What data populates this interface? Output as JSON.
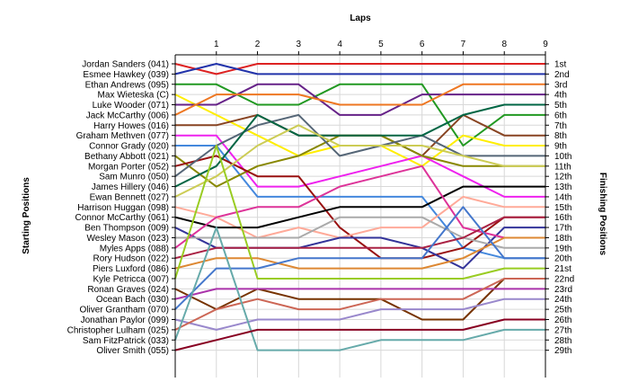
{
  "chart_data": {
    "type": "line",
    "title": "",
    "xlabel": "Laps",
    "ylabel_left": "Starting Positions",
    "ylabel_right": "Finishing Positions",
    "x": [
      0,
      1,
      2,
      3,
      4,
      5,
      6,
      7,
      8
    ],
    "x_ticks": [
      "1",
      "2",
      "3",
      "4",
      "5",
      "6",
      "7",
      "8",
      "9"
    ],
    "xlim": [
      0,
      9
    ],
    "ylim": [
      1,
      29
    ],
    "y_inverted": true,
    "grid": true,
    "legend": "none",
    "finishing_positions": [
      "1st",
      "2nd",
      "3rd",
      "4th",
      "5th",
      "6th",
      "7th",
      "8th",
      "9th",
      "10th",
      "11th",
      "12th",
      "13th",
      "14th",
      "15th",
      "16th",
      "17th",
      "18th",
      "19th",
      "20th",
      "21st",
      "22nd",
      "23rd",
      "24th",
      "25th",
      "26th",
      "27th",
      "28th",
      "29th"
    ],
    "series": [
      {
        "name": "Jordan Sanders (041)",
        "color": "#dd2222",
        "values": [
          1,
          2,
          1,
          1,
          1,
          1,
          1,
          1,
          1
        ]
      },
      {
        "name": "Esmee Hawkey (039)",
        "color": "#2233aa",
        "values": [
          2,
          1,
          2,
          2,
          2,
          2,
          2,
          2,
          2
        ]
      },
      {
        "name": "Ethan Andrews (095)",
        "color": "#229922",
        "values": [
          3,
          3,
          5,
          5,
          3,
          3,
          3,
          9,
          6
        ]
      },
      {
        "name": "Max Wieteska (C)",
        "color": "#ffee00",
        "values": [
          4,
          6,
          8,
          10,
          9,
          9,
          11,
          8,
          9
        ]
      },
      {
        "name": "Luke Wooder (071)",
        "color": "#662288",
        "values": [
          5,
          5,
          3,
          3,
          6,
          6,
          4,
          4,
          4
        ]
      },
      {
        "name": "Jack McCarthy (006)",
        "color": "#ee7722",
        "values": [
          6,
          4,
          4,
          4,
          5,
          5,
          5,
          3,
          3
        ]
      },
      {
        "name": "Harry Howes (016)",
        "color": "#884422",
        "values": [
          7,
          7,
          6,
          8,
          8,
          8,
          10,
          6,
          8
        ]
      },
      {
        "name": "Graham Methven (077)",
        "color": "#ee22ee",
        "values": [
          8,
          8,
          13,
          13,
          12,
          11,
          10,
          12,
          14
        ]
      },
      {
        "name": "Connor Grady (020)",
        "color": "#4488dd",
        "values": [
          9,
          9,
          14,
          14,
          14,
          14,
          14,
          19,
          20
        ]
      },
      {
        "name": "Bethany Abbott (021)",
        "color": "#888800",
        "values": [
          10,
          13,
          11,
          10,
          8,
          8,
          10,
          11,
          11
        ]
      },
      {
        "name": "Morgan Porter (052)",
        "color": "#991111",
        "values": [
          11,
          10,
          12,
          12,
          17,
          20,
          20,
          19,
          16
        ]
      },
      {
        "name": "Sam Munro (050)",
        "color": "#556677",
        "values": [
          12,
          9,
          7,
          6,
          10,
          9,
          8,
          10,
          10
        ]
      },
      {
        "name": "James Hillery (046)",
        "color": "#006644",
        "values": [
          13,
          11,
          6,
          8,
          8,
          8,
          8,
          6,
          5
        ]
      },
      {
        "name": "Ewan Bennett (027)",
        "color": "#cccc55",
        "values": [
          14,
          12,
          9,
          7,
          9,
          9,
          9,
          10,
          11
        ]
      },
      {
        "name": "Harrison Huggan (098)",
        "color": "#ffaa99",
        "values": [
          15,
          16,
          18,
          17,
          18,
          17,
          17,
          14,
          15
        ]
      },
      {
        "name": "Connor McCarthy (061)",
        "color": "#000000",
        "values": [
          16,
          17,
          17,
          16,
          15,
          15,
          15,
          13,
          13
        ]
      },
      {
        "name": "Ben Thompson (009)",
        "color": "#333399",
        "values": [
          17,
          19,
          19,
          19,
          18,
          18,
          19,
          21,
          17
        ]
      },
      {
        "name": "Wesley Mason (023)",
        "color": "#aaaaaa",
        "values": [
          18,
          18,
          18,
          18,
          16,
          16,
          16,
          18,
          19
        ]
      },
      {
        "name": "Myles Apps (088)",
        "color": "#dd3399",
        "values": [
          19,
          16,
          15,
          15,
          13,
          12,
          11,
          17,
          18
        ]
      },
      {
        "name": "Rory Hudson (022)",
        "color": "#aa2244",
        "values": [
          20,
          19,
          19,
          19,
          19,
          19,
          19,
          18,
          16
        ]
      },
      {
        "name": "Piers Luxford (086)",
        "color": "#dd8833",
        "values": [
          21,
          20,
          20,
          21,
          21,
          21,
          21,
          20,
          18
        ]
      },
      {
        "name": "Kyle Petricca (007)",
        "color": "#99cc22",
        "values": [
          22,
          9,
          22,
          22,
          22,
          22,
          22,
          22,
          21
        ]
      },
      {
        "name": "Ronan Graves (024)",
        "color": "#773300",
        "values": [
          23,
          25,
          23,
          24,
          24,
          24,
          26,
          26,
          22
        ]
      },
      {
        "name": "Ocean Bach (030)",
        "color": "#aa33aa",
        "values": [
          24,
          23,
          23,
          23,
          23,
          23,
          23,
          23,
          23
        ]
      },
      {
        "name": "Oliver Grantham (070)",
        "color": "#4477cc",
        "values": [
          25,
          21,
          21,
          20,
          20,
          20,
          20,
          15,
          20
        ]
      },
      {
        "name": "Jonathan Paylor (099)",
        "color": "#9988cc",
        "values": [
          26,
          27,
          26,
          26,
          26,
          25,
          25,
          25,
          24
        ]
      },
      {
        "name": "Christopher Lulham (025)",
        "color": "#cc6655",
        "values": [
          27,
          25,
          24,
          25,
          25,
          24,
          24,
          24,
          22
        ]
      },
      {
        "name": "Sam FitzPatrick (033)",
        "color": "#66aaaa",
        "values": [
          28,
          17,
          29,
          29,
          29,
          28,
          28,
          28,
          27
        ]
      },
      {
        "name": "Oliver Smith (055)",
        "color": "#880022",
        "values": [
          29,
          28,
          27,
          27,
          27,
          27,
          27,
          27,
          26
        ]
      }
    ]
  }
}
